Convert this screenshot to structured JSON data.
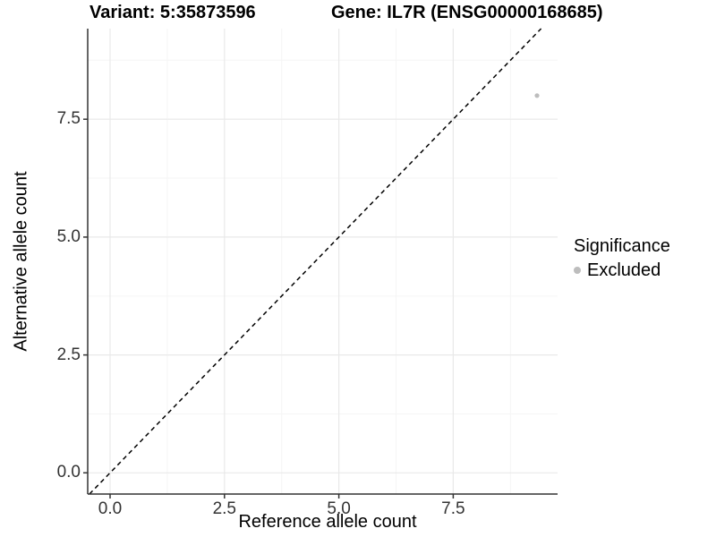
{
  "titles": {
    "variant": "Variant: 5:35873596",
    "gene": "Gene: IL7R (ENSG00000168685)"
  },
  "chart_data": {
    "type": "scatter",
    "title_left": "Variant: 5:35873596",
    "title_right": "Gene: IL7R (ENSG00000168685)",
    "xlabel": "Reference allele count",
    "ylabel": "Alternative allele count",
    "x_ticks": [
      0.0,
      2.5,
      5.0,
      7.5
    ],
    "x_tick_labels": [
      "0.0",
      "2.5",
      "5.0",
      "7.5"
    ],
    "y_ticks": [
      0.0,
      2.5,
      5.0,
      7.5
    ],
    "y_tick_labels": [
      "0.0",
      "2.5",
      "5.0",
      "7.5"
    ],
    "x_minor_ticks": [
      1.25,
      3.75,
      6.25,
      8.75
    ],
    "y_minor_ticks": [
      1.25,
      3.75,
      6.25,
      8.75
    ],
    "xlim": [
      -0.49,
      9.78
    ],
    "ylim": [
      -0.45,
      9.42
    ],
    "grid": true,
    "points": [
      {
        "x": 9.33,
        "y": 8.0,
        "series": "Excluded",
        "color": "#bdbdbd",
        "radius_px": 2.6
      }
    ],
    "reference_line": {
      "slope": 1,
      "intercept": 0,
      "style": "dashed",
      "color": "#000000"
    },
    "legend": {
      "title": "Significance",
      "position": "right",
      "entries": [
        {
          "label": "Excluded",
          "color": "#bdbdbd"
        }
      ]
    }
  },
  "colors": {
    "background": "#ffffff",
    "grid_major": "#e9e9e9",
    "grid_minor": "#f5f5f5",
    "axis_line": "#333333",
    "tick_mark": "#333333",
    "tick_label": "#333333",
    "point": "#bdbdbd"
  }
}
